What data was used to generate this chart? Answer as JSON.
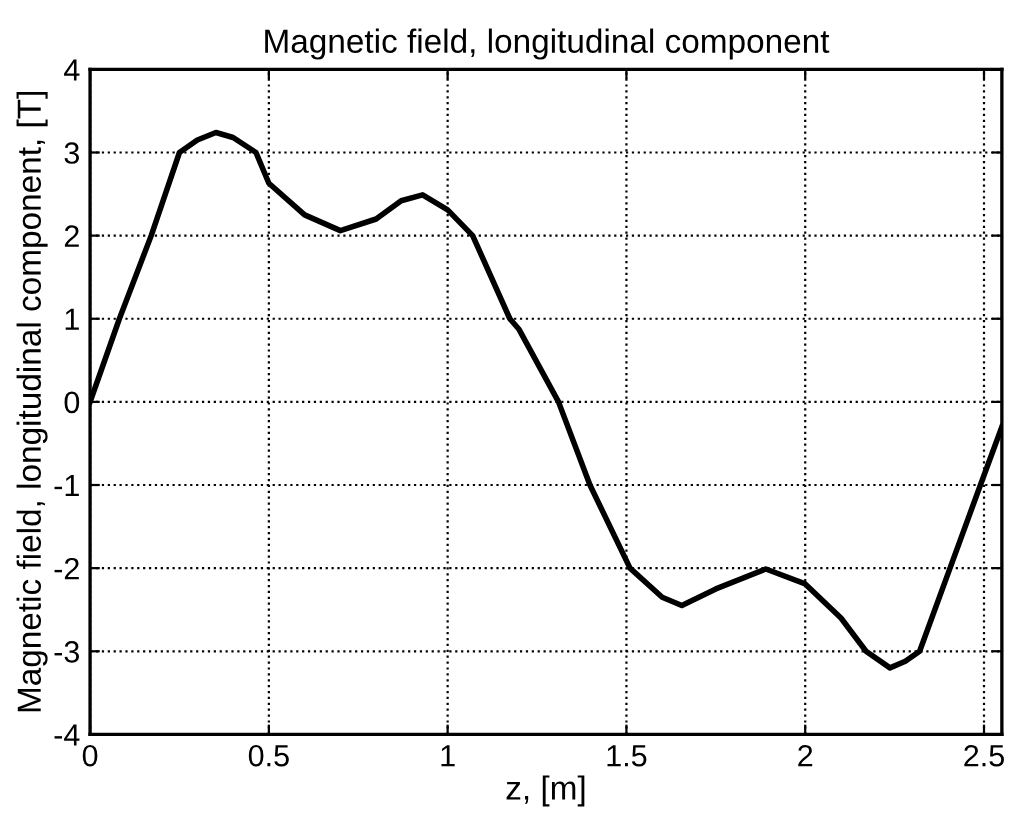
{
  "chart_data": {
    "type": "line",
    "title": "Magnetic field, longitudinal component",
    "xlabel": "z, [m]",
    "ylabel": "Magnetic field, longitudinal component, [T]",
    "series": [
      {
        "color": "#000000",
        "x": [
          0,
          0.082,
          0.171,
          0.25,
          0.3,
          0.352,
          0.4,
          0.464,
          0.5,
          0.6,
          0.7,
          0.8,
          0.87,
          0.93,
          1.0,
          1.07,
          1.174,
          1.2,
          1.31,
          1.398,
          1.51,
          1.6,
          1.655,
          1.75,
          1.89,
          2.0,
          2.1,
          2.17,
          2.237,
          2.28,
          2.32,
          2.405,
          2.49,
          2.55
        ],
        "values": [
          0,
          1,
          2,
          3,
          3.15,
          3.24,
          3.18,
          3,
          2.63,
          2.25,
          2.06,
          2.2,
          2.42,
          2.49,
          2.31,
          2,
          1,
          0.87,
          0,
          -1,
          -2,
          -2.35,
          -2.45,
          -2.25,
          -2.01,
          -2.19,
          -2.6,
          -3,
          -3.2,
          -3.12,
          -3,
          -2,
          -1,
          -0.3
        ]
      }
    ],
    "xlim": [
      0,
      2.55
    ],
    "xticks": [
      0,
      0.5,
      1,
      1.5,
      2,
      2.5
    ],
    "ylim": [
      -4,
      4
    ],
    "yticks": [
      -4,
      -3,
      -2,
      -1,
      0,
      1,
      2,
      3,
      4
    ],
    "grid": true,
    "line_style": "solid",
    "marker": "none"
  }
}
